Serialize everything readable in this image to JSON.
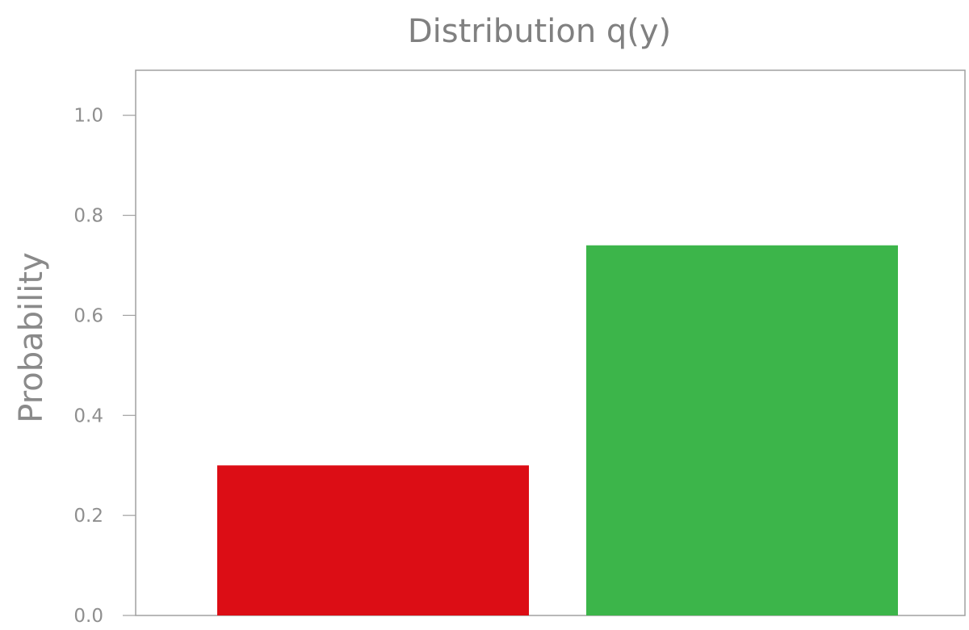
{
  "chart_data": {
    "type": "bar",
    "title": "Distribution q(y)",
    "xlabel": "",
    "ylabel": "Probability",
    "categories": [
      "",
      ""
    ],
    "values": [
      0.3,
      0.74
    ],
    "colors": [
      "#dc0d15",
      "#3cb54a"
    ],
    "ylim": [
      0.0,
      1.09
    ],
    "yticks": [
      "0.0",
      "0.2",
      "0.4",
      "0.6",
      "0.8",
      "1.0"
    ],
    "grid": false,
    "legend": "none",
    "axis_color": "#a0a0a0",
    "text_color": "#808080"
  }
}
